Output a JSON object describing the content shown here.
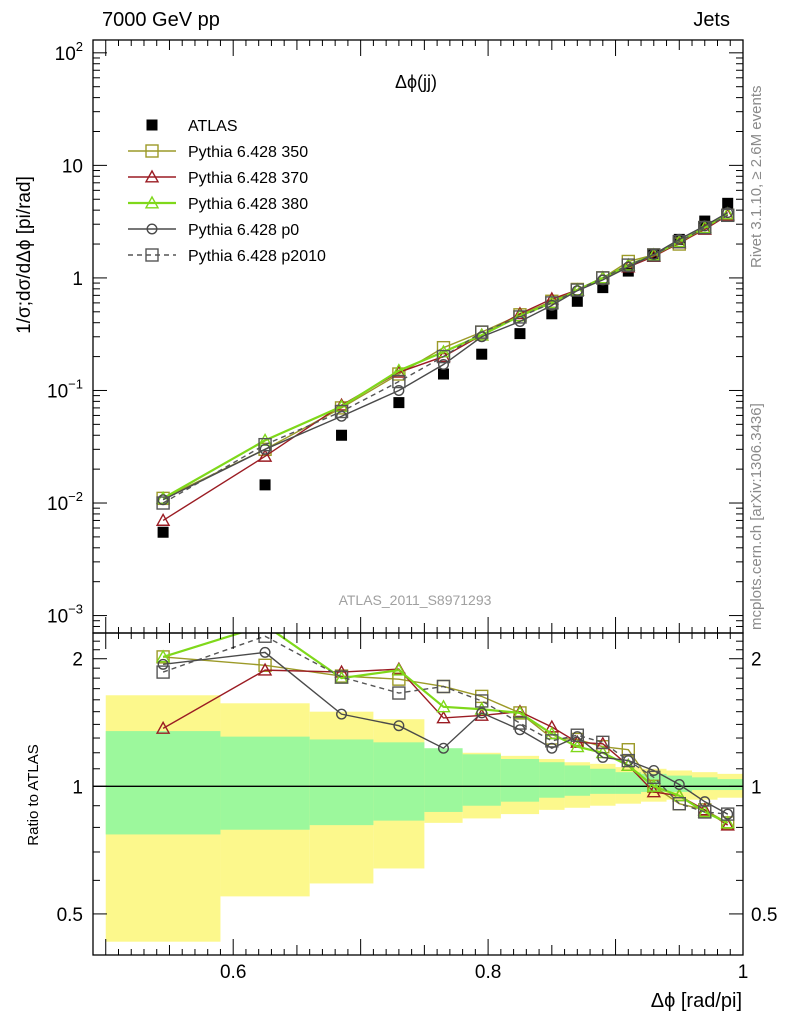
{
  "header": {
    "left_label": "7000 GeV pp",
    "right_label": "Jets"
  },
  "side_labels": {
    "rivet": "Rivet 3.1.10, ≥ 2.6M events",
    "mcplots": "mcplots.cern.ch [arXiv:1306.3436]"
  },
  "chart_data": [
    {
      "type": "scatter",
      "panel": "main",
      "title": "Δϕ(jj)",
      "watermark": "ATLAS_2011_S8971293",
      "ylabel": "1/σ;dσ/dΔϕ [pi/rad]",
      "y_scale": "log",
      "ylim": [
        0.0007,
        130
      ],
      "xlim": [
        0.49,
        1.0
      ],
      "ytick_labels": [
        "10^-3",
        "10^-2",
        "10^-1",
        "1",
        "10",
        "10^2"
      ],
      "legend_position": "top-left",
      "x": [
        0.545,
        0.625,
        0.685,
        0.73,
        0.765,
        0.795,
        0.825,
        0.85,
        0.87,
        0.89,
        0.91,
        0.93,
        0.95,
        0.97,
        0.988
      ],
      "series": [
        {
          "name": "ATLAS",
          "color": "#000000",
          "marker": "filled-square",
          "dashed": false,
          "values": [
            0.0055,
            0.0145,
            0.04,
            0.078,
            0.14,
            0.21,
            0.32,
            0.48,
            0.62,
            0.82,
            1.15,
            1.6,
            2.2,
            3.2,
            4.6
          ]
        },
        {
          "name": "Pythia 6.428 350",
          "color": "#9c9a28",
          "marker": "open-square",
          "dashed": false,
          "values": [
            0.011,
            0.03,
            0.07,
            0.14,
            0.24,
            0.33,
            0.47,
            0.62,
            0.79,
            1.0,
            1.4,
            1.6,
            2.0,
            2.8,
            3.6
          ]
        },
        {
          "name": "Pythia 6.428 370",
          "color": "#9b1c23",
          "marker": "open-triangle",
          "dashed": false,
          "values": [
            0.007,
            0.026,
            0.074,
            0.145,
            0.2,
            0.31,
            0.48,
            0.65,
            0.78,
            1.0,
            1.25,
            1.55,
            2.05,
            2.7,
            3.6
          ]
        },
        {
          "name": "Pythia 6.428 380",
          "color": "#7fd81a",
          "marker": "open-triangle",
          "dashed": false,
          "values": [
            0.011,
            0.036,
            0.072,
            0.15,
            0.22,
            0.31,
            0.46,
            0.6,
            0.78,
            1.0,
            1.3,
            1.6,
            2.1,
            2.8,
            3.7
          ]
        },
        {
          "name": "Pythia 6.428 p0",
          "color": "#4a4a4a",
          "marker": "open-circle",
          "dashed": false,
          "values": [
            0.0107,
            0.03,
            0.059,
            0.1,
            0.17,
            0.3,
            0.41,
            0.57,
            0.77,
            0.96,
            1.25,
            1.62,
            2.2,
            2.9,
            3.8
          ]
        },
        {
          "name": "Pythia 6.428 p2010",
          "color": "#555555",
          "marker": "open-square",
          "dashed": true,
          "values": [
            0.01,
            0.033,
            0.065,
            0.12,
            0.2,
            0.33,
            0.45,
            0.6,
            0.78,
            1.0,
            1.3,
            1.6,
            2.1,
            2.8,
            3.6
          ]
        }
      ]
    },
    {
      "type": "line",
      "panel": "ratio",
      "ylabel": "Ratio to ATLAS",
      "xlabel": "Δϕ [rad/pi]",
      "y_scale": "log",
      "ylim": [
        0.4,
        2.3
      ],
      "xlim": [
        0.49,
        1.0
      ],
      "ytick_labels": [
        "0.5",
        "1",
        "2"
      ],
      "xtick_labels": [
        "0.6",
        "0.8",
        "1"
      ],
      "reference_line": 1,
      "uncertainty_bands": {
        "bin_edges": [
          0.5,
          0.59,
          0.66,
          0.71,
          0.75,
          0.78,
          0.81,
          0.84,
          0.86,
          0.88,
          0.9,
          0.92,
          0.94,
          0.96,
          0.98,
          1.0
        ],
        "stat_color": "#9cf89c",
        "total_color": "#fcf88c",
        "stat": [
          [
            0.77,
            1.35
          ],
          [
            0.79,
            1.31
          ],
          [
            0.81,
            1.29
          ],
          [
            0.83,
            1.27
          ],
          [
            0.87,
            1.23
          ],
          [
            0.9,
            1.19
          ],
          [
            0.92,
            1.16
          ],
          [
            0.94,
            1.14
          ],
          [
            0.95,
            1.12
          ],
          [
            0.96,
            1.1
          ],
          [
            0.96,
            1.08
          ],
          [
            0.97,
            1.07
          ],
          [
            0.97,
            1.06
          ],
          [
            0.98,
            1.05
          ],
          [
            0.98,
            1.04
          ]
        ],
        "total": [
          [
            0.43,
            1.64
          ],
          [
            0.55,
            1.57
          ],
          [
            0.59,
            1.5
          ],
          [
            0.64,
            1.44
          ],
          [
            0.82,
            1.21
          ],
          [
            0.84,
            1.2
          ],
          [
            0.86,
            1.18
          ],
          [
            0.88,
            1.16
          ],
          [
            0.89,
            1.14
          ],
          [
            0.9,
            1.13
          ],
          [
            0.91,
            1.11
          ],
          [
            0.92,
            1.1
          ],
          [
            0.93,
            1.09
          ],
          [
            0.93,
            1.08
          ],
          [
            0.94,
            1.07
          ]
        ]
      },
      "x": [
        0.545,
        0.625,
        0.685,
        0.73,
        0.765,
        0.795,
        0.825,
        0.85,
        0.87,
        0.89,
        0.91,
        0.93,
        0.95,
        0.97,
        0.988
      ],
      "series": [
        {
          "name": "Pythia 6.428 350",
          "color": "#9c9a28",
          "marker": "open-square",
          "dashed": false,
          "values": [
            2.02,
            1.93,
            1.82,
            1.79,
            1.72,
            1.63,
            1.49,
            1.3,
            1.29,
            1.24,
            1.22,
            1.0,
            0.91,
            0.88,
            0.82
          ]
        },
        {
          "name": "Pythia 6.428 370",
          "color": "#9b1c23",
          "marker": "open-triangle",
          "dashed": false,
          "values": [
            1.37,
            1.88,
            1.86,
            1.89,
            1.45,
            1.47,
            1.5,
            1.38,
            1.27,
            1.26,
            1.12,
            0.97,
            0.95,
            0.88,
            0.81
          ]
        },
        {
          "name": "Pythia 6.428 380",
          "color": "#7fd81a",
          "marker": "open-triangle",
          "dashed": false,
          "values": [
            2.02,
            2.4,
            1.8,
            1.88,
            1.54,
            1.52,
            1.49,
            1.33,
            1.24,
            1.2,
            1.12,
            1.0,
            0.95,
            0.87,
            0.82
          ]
        },
        {
          "name": "Pythia 6.428 p0",
          "color": "#4a4a4a",
          "marker": "open-circle",
          "dashed": false,
          "values": [
            1.94,
            2.07,
            1.48,
            1.39,
            1.23,
            1.49,
            1.36,
            1.23,
            1.31,
            1.17,
            1.15,
            1.09,
            1.01,
            0.92,
            0.86
          ]
        },
        {
          "name": "Pythia 6.428 p2010",
          "color": "#555555",
          "marker": "open-square",
          "dashed": true,
          "values": [
            1.86,
            2.26,
            1.81,
            1.66,
            1.72,
            1.59,
            1.41,
            1.28,
            1.32,
            1.27,
            1.15,
            1.05,
            0.91,
            0.87,
            0.86
          ]
        }
      ]
    }
  ]
}
